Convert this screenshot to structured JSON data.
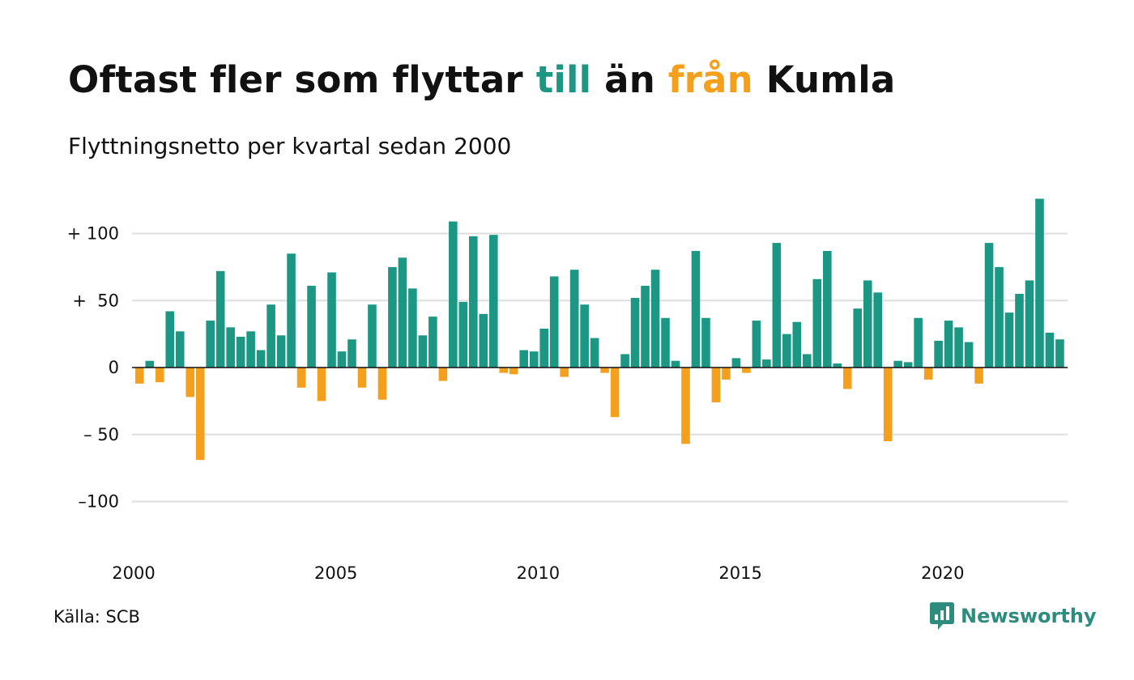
{
  "header": {
    "title_parts": [
      "Oftast fler som flyttar ",
      "till",
      " än ",
      "från",
      " Kumla"
    ],
    "subtitle": "Flyttningsnetto per kvartal sedan 2000"
  },
  "footer": {
    "source": "Källa: SCB",
    "brand": "Newsworthy",
    "brand_icon": "newsworthy-logo-icon"
  },
  "colors": {
    "positive": "#1b9784",
    "negative": "#f5a01c",
    "grid": "#dedede",
    "zero_line": "#111111"
  },
  "chart_data": {
    "type": "bar",
    "title": "Oftast fler som flyttar till än från Kumla",
    "subtitle": "Flyttningsnetto per kvartal sedan 2000",
    "xlabel": "",
    "ylabel": "",
    "x_start": "2000 Q1",
    "x_ticks": [
      "2000",
      "2005",
      "2010",
      "2015",
      "2020"
    ],
    "y_ticks": [
      100,
      50,
      0,
      -50,
      -100
    ],
    "y_tick_labels": [
      "+ 100",
      "+  50",
      "0",
      "– 50",
      "–100"
    ],
    "ylim": [
      -140,
      130
    ],
    "grid": true,
    "legend": "none",
    "values": [
      -12,
      5,
      -11,
      42,
      27,
      -22,
      -69,
      35,
      72,
      30,
      23,
      27,
      13,
      47,
      24,
      85,
      -15,
      61,
      -25,
      71,
      12,
      21,
      -15,
      47,
      -24,
      75,
      82,
      59,
      24,
      38,
      -10,
      109,
      49,
      98,
      40,
      99,
      -4,
      -5,
      13,
      12,
      29,
      68,
      -7,
      73,
      47,
      22,
      -4,
      -37,
      10,
      52,
      61,
      73,
      37,
      5,
      -57,
      87,
      37,
      -26,
      -9,
      7,
      -4,
      35,
      6,
      93,
      25,
      34,
      10,
      66,
      87,
      3,
      -16,
      44,
      65,
      56,
      -55,
      5,
      4,
      37,
      -9,
      20,
      35,
      30,
      19,
      -12,
      93,
      75,
      41,
      55,
      65,
      126,
      26,
      21
    ]
  }
}
